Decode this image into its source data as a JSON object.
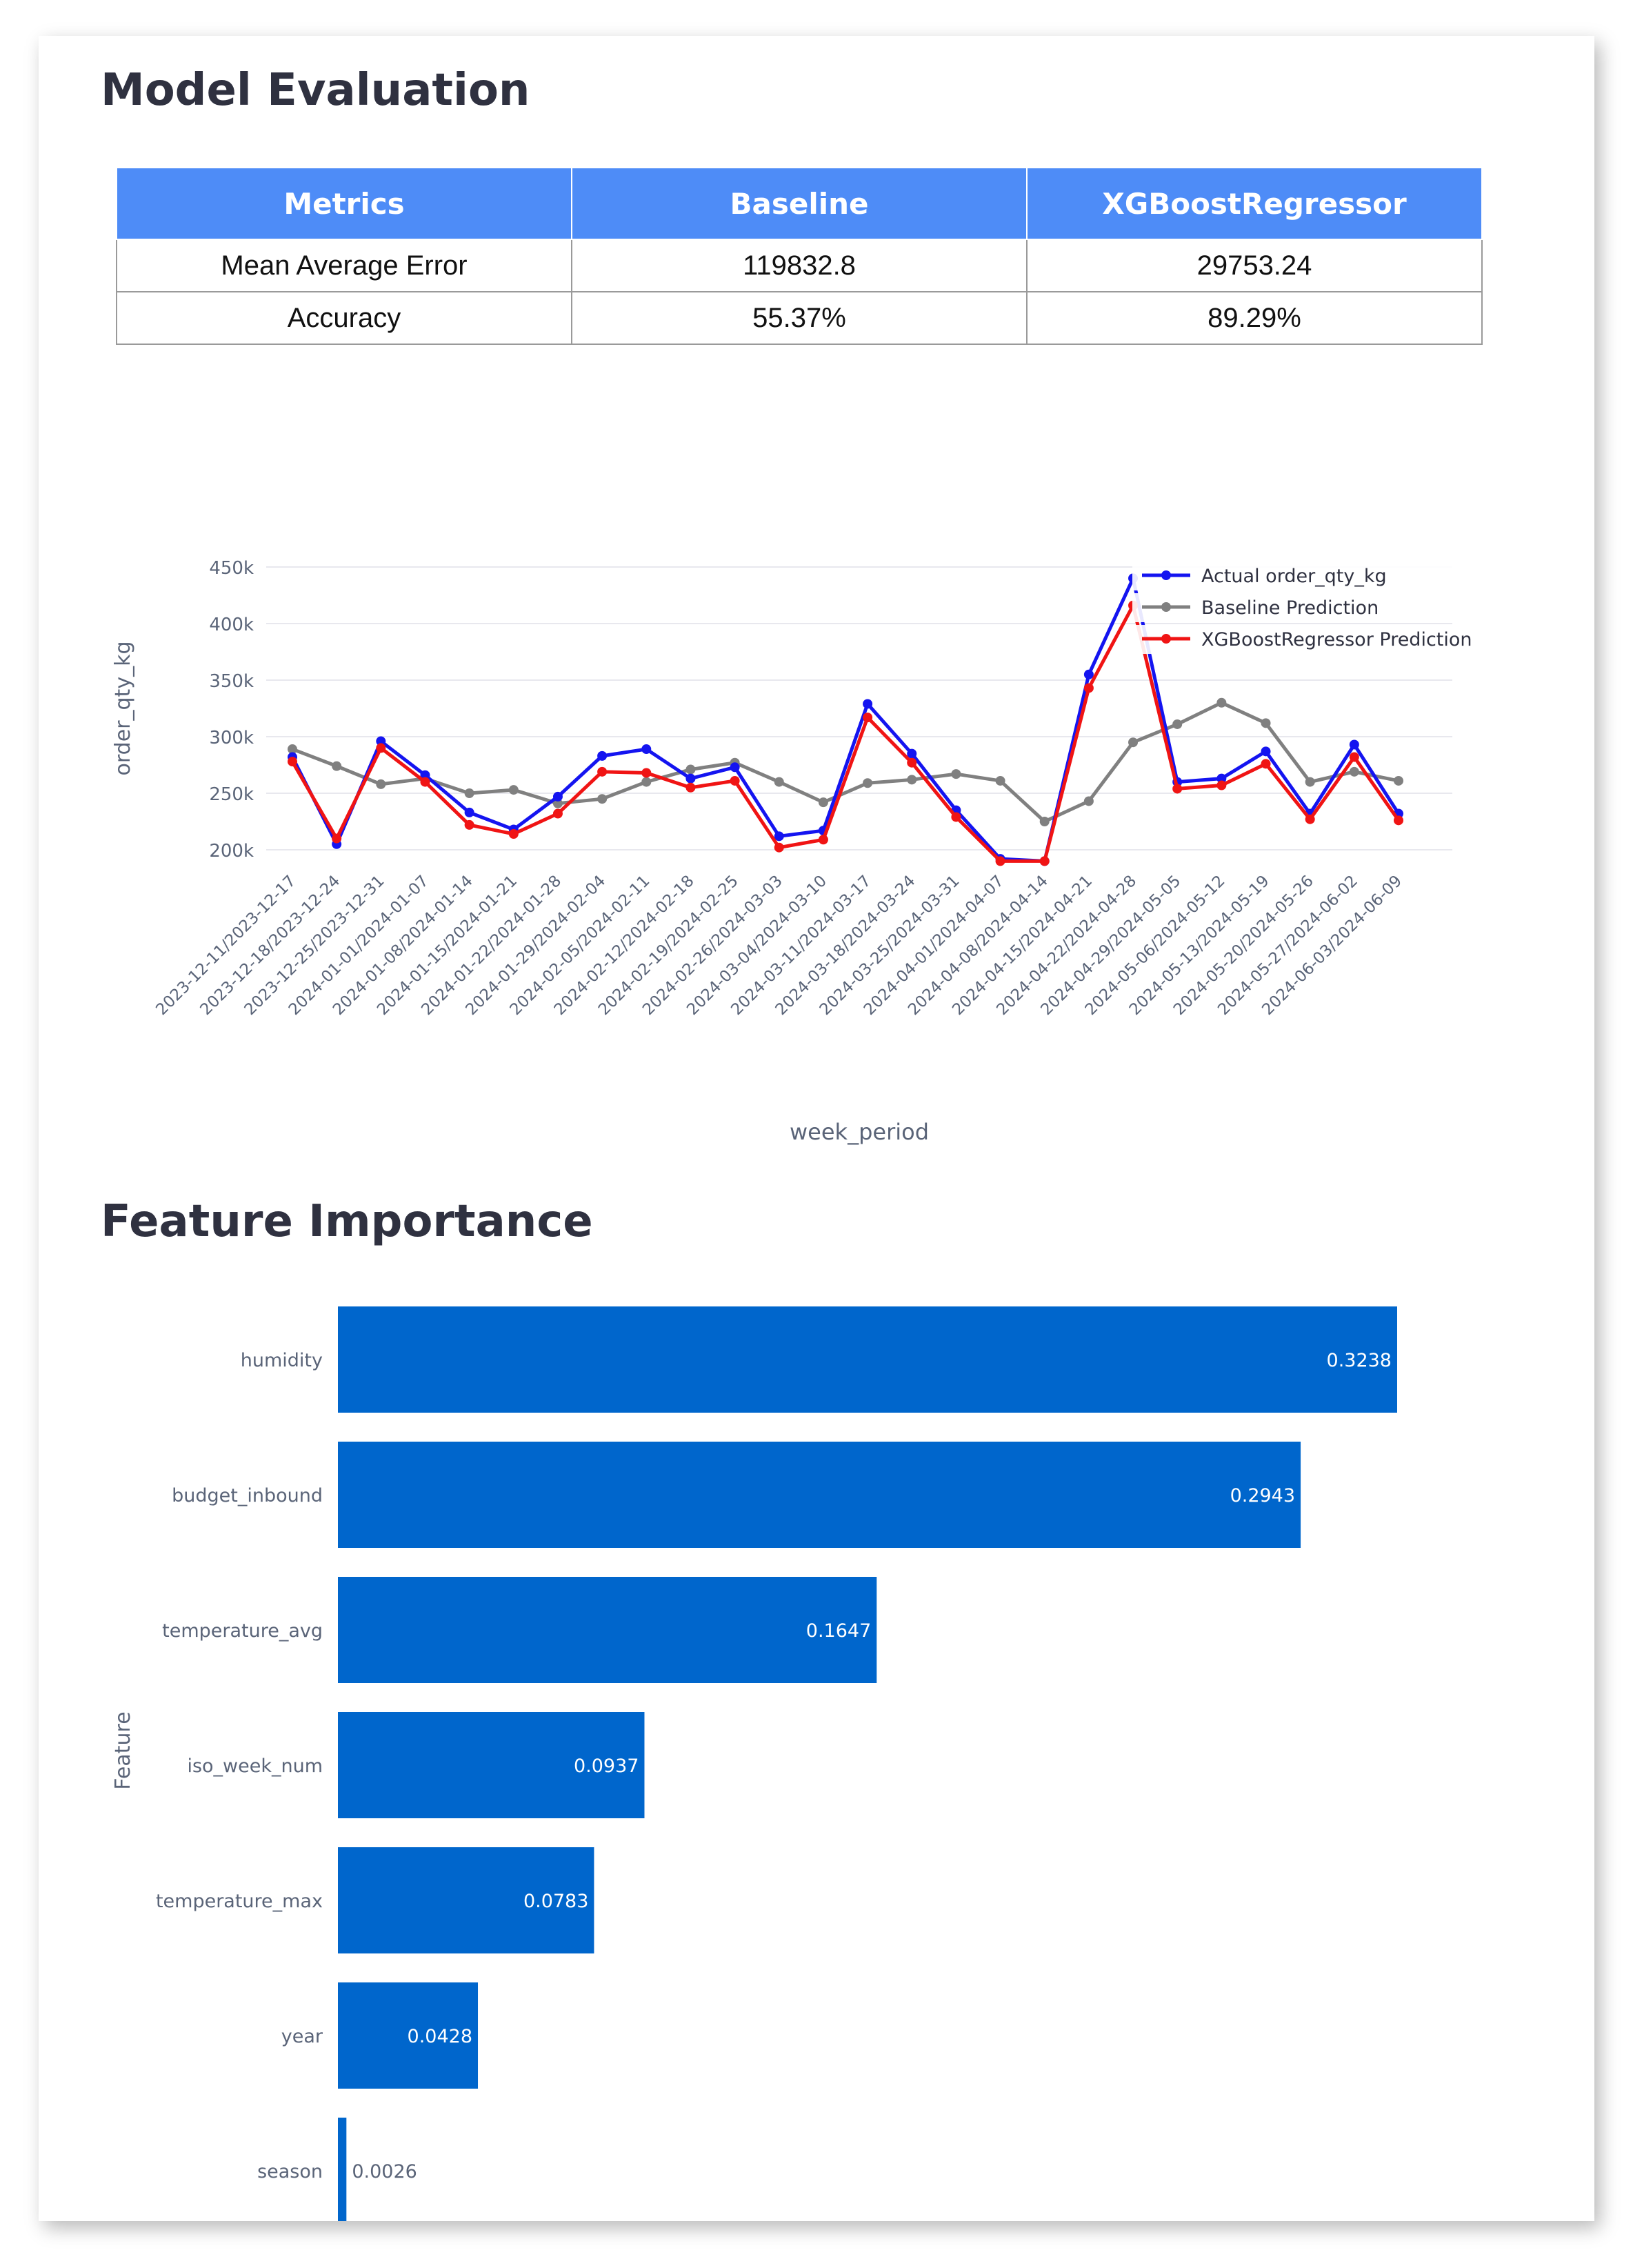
{
  "model_evaluation": {
    "title": "Model Evaluation",
    "columns": [
      "Metrics",
      "Baseline",
      "XGBoostRegressor"
    ],
    "rows": [
      [
        "Mean Average Error",
        "119832.8",
        "29753.24"
      ],
      [
        "Accuracy",
        "55.37%",
        "89.29%"
      ]
    ]
  },
  "feature_importance": {
    "title": "Feature Importance"
  },
  "chart_data": [
    {
      "type": "line",
      "xlabel": "week_period",
      "ylabel": "order_qty_kg",
      "ylim": [
        180000,
        450000
      ],
      "yticks": [
        200000,
        250000,
        300000,
        350000,
        400000,
        450000
      ],
      "ytick_labels": [
        "200k",
        "250k",
        "300k",
        "350k",
        "400k",
        "450k"
      ],
      "grid": true,
      "legend_position": "top-right",
      "x": [
        "2023-12-11/2023-12-17",
        "2023-12-18/2023-12-24",
        "2023-12-25/2023-12-31",
        "2024-01-01/2024-01-07",
        "2024-01-08/2024-01-14",
        "2024-01-15/2024-01-21",
        "2024-01-22/2024-01-28",
        "2024-01-29/2024-02-04",
        "2024-02-05/2024-02-11",
        "2024-02-12/2024-02-18",
        "2024-02-19/2024-02-25",
        "2024-02-26/2024-03-03",
        "2024-03-04/2024-03-10",
        "2024-03-11/2024-03-17",
        "2024-03-18/2024-03-24",
        "2024-03-25/2024-03-31",
        "2024-04-01/2024-04-07",
        "2024-04-08/2024-04-14",
        "2024-04-15/2024-04-21",
        "2024-04-22/2024-04-28",
        "2024-04-29/2024-05-05",
        "2024-05-06/2024-05-12",
        "2024-05-13/2024-05-19",
        "2024-05-20/2024-05-26",
        "2024-05-27/2024-06-02",
        "2024-06-03/2024-06-09"
      ],
      "series": [
        {
          "name": "Actual order_qty_kg",
          "color": "#1414f0",
          "values": [
            282000,
            205000,
            296000,
            266000,
            233000,
            218000,
            247000,
            283000,
            289000,
            263000,
            273000,
            212000,
            217000,
            329000,
            285000,
            235000,
            192000,
            190000,
            355000,
            440000,
            260000,
            263000,
            287000,
            232000,
            293000,
            232000
          ]
        },
        {
          "name": "Baseline Prediction",
          "color": "#808080",
          "values": [
            289000,
            274000,
            258000,
            263000,
            250000,
            253000,
            241000,
            245000,
            260000,
            271000,
            277000,
            260000,
            242000,
            259000,
            262000,
            267000,
            261000,
            225000,
            243000,
            295000,
            311000,
            330000,
            312000,
            260000,
            269000,
            261000
          ]
        },
        {
          "name": "XGBoostRegressor Prediction",
          "color": "#f01414",
          "values": [
            278000,
            210000,
            290000,
            260000,
            222000,
            214000,
            232000,
            269000,
            268000,
            255000,
            261000,
            202000,
            209000,
            317000,
            277000,
            229000,
            190000,
            190000,
            343000,
            416000,
            254000,
            257000,
            276000,
            227000,
            282000,
            226000
          ]
        }
      ]
    },
    {
      "type": "bar",
      "orientation": "horizontal",
      "ylabel": "Feature",
      "color": "#0066cc",
      "categories": [
        "humidity",
        "budget_inbound",
        "temperature_avg",
        "iso_week_num",
        "temperature_max",
        "year",
        "season"
      ],
      "values": [
        0.3238,
        0.2943,
        0.1647,
        0.0937,
        0.0783,
        0.0428,
        0.0026
      ],
      "value_labels": [
        "0.3238",
        "0.2943",
        "0.1647",
        "0.0937",
        "0.0783",
        "0.0428",
        "0.0026"
      ]
    }
  ]
}
